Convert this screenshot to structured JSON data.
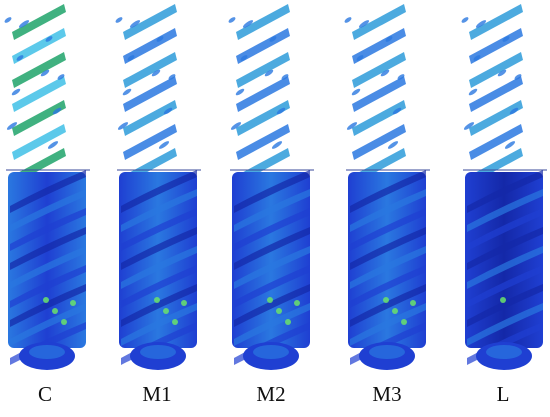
{
  "figure": {
    "panels": [
      {
        "label": "C",
        "variant": "c"
      },
      {
        "label": "M1",
        "variant": "m"
      },
      {
        "label": "M2",
        "variant": "m"
      },
      {
        "label": "M3",
        "variant": "m"
      },
      {
        "label": "L",
        "variant": "l"
      }
    ],
    "colors": {
      "upper_green": "#35d63a",
      "upper_cyan": "#3fc0e6",
      "mid_blue": "#2a78e0",
      "deep_blue": "#1f3fd2",
      "navy": "#1428a8",
      "highlight_green": "#6be36a"
    }
  }
}
